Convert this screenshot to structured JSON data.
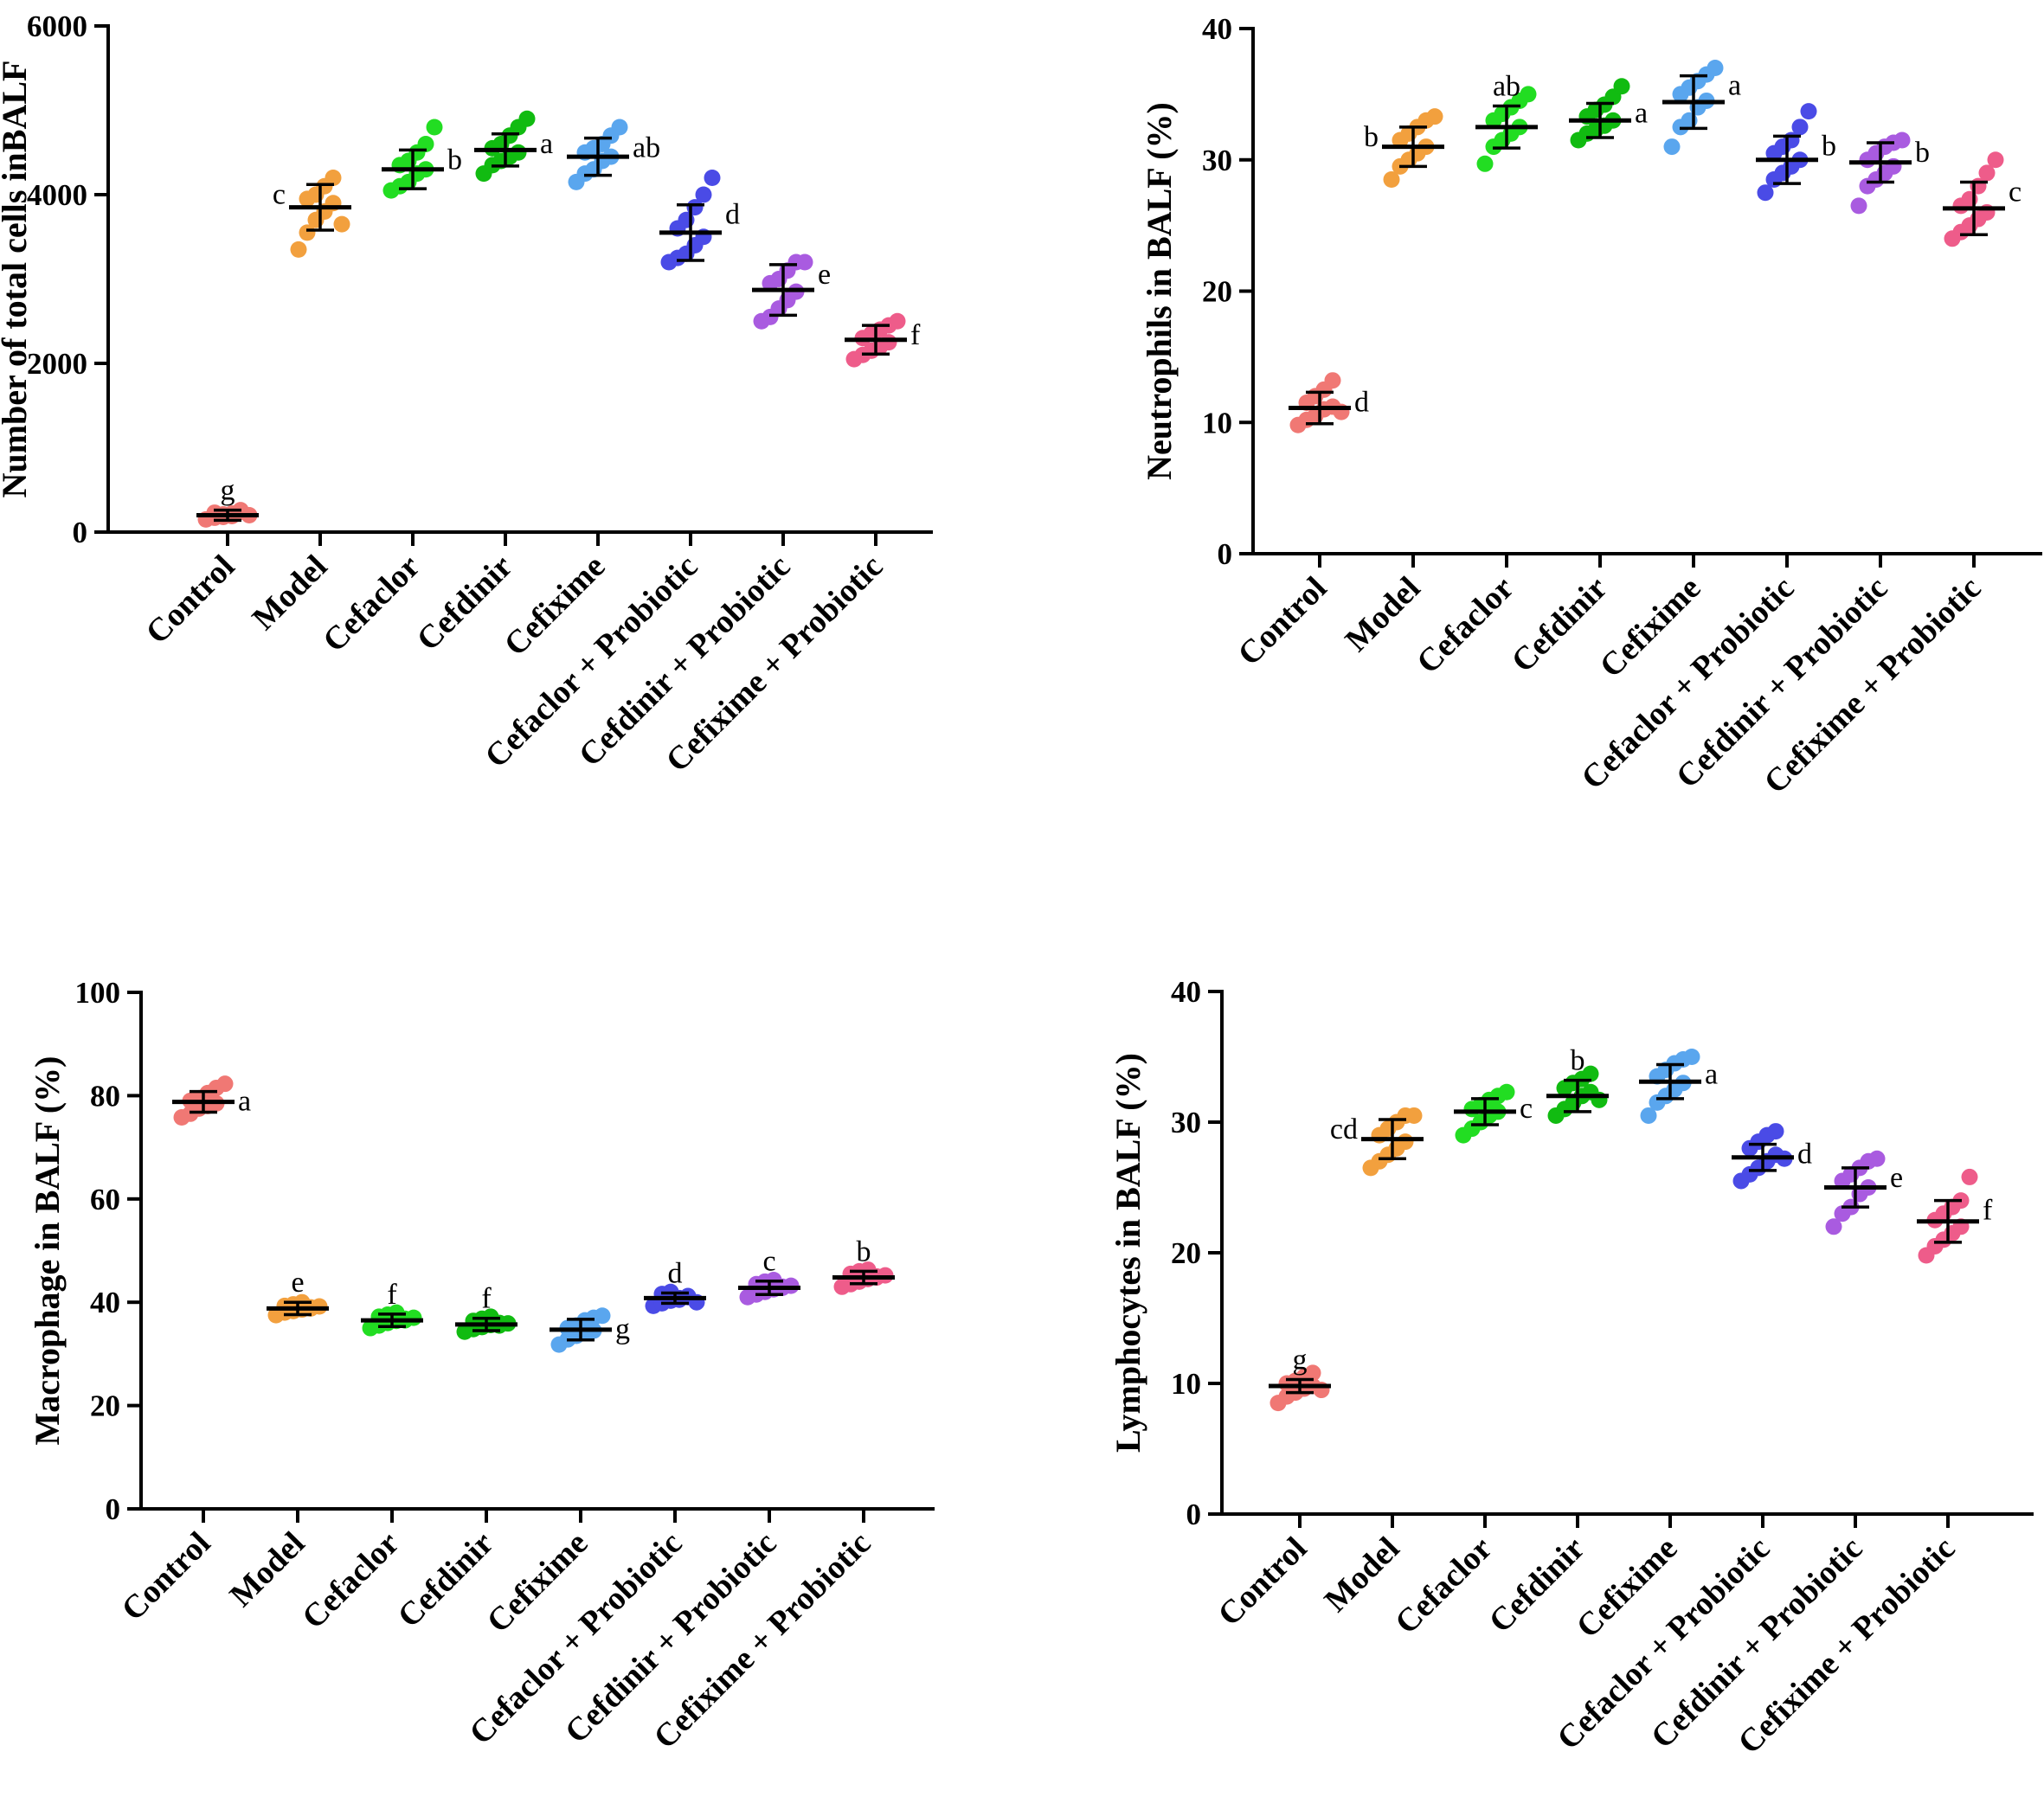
{
  "chart_data": [
    {
      "type": "scatter",
      "ylabel": "Number of total cells inBALF",
      "ylim": [
        0,
        6000
      ],
      "yticks": [
        "0",
        "2000",
        "4000",
        "6000"
      ],
      "categories": [
        "Control",
        "Model",
        "Cefaclor",
        "Cefdinir",
        "Cefixime",
        "Cefaclor + Probiotic",
        "Cefdinir + Probiotic",
        "Cefixime + Probiotic"
      ],
      "means": [
        200,
        3850,
        4300,
        4530,
        4450,
        3550,
        2870,
        2280
      ],
      "errors": [
        60,
        270,
        230,
        190,
        220,
        330,
        300,
        170
      ],
      "letters": [
        "g",
        "c",
        "b",
        "a",
        "ab",
        "d",
        "e",
        "f"
      ],
      "letter_pos": [
        "top",
        "left",
        "right",
        "right",
        "right",
        "right",
        "right",
        "right"
      ],
      "points": [
        [
          150,
          230,
          180,
          220,
          260,
          170,
          210,
          190,
          240,
          200
        ],
        [
          3350,
          3550,
          3700,
          3800,
          3900,
          3950,
          4000,
          4100,
          4200,
          3650
        ],
        [
          4050,
          4100,
          4150,
          4250,
          4300,
          4350,
          4400,
          4500,
          4600,
          4800
        ],
        [
          4250,
          4350,
          4400,
          4450,
          4500,
          4550,
          4600,
          4700,
          4800,
          4900
        ],
        [
          4150,
          4250,
          4300,
          4400,
          4450,
          4500,
          4550,
          4600,
          4700,
          4800
        ],
        [
          3200,
          3250,
          3300,
          3400,
          3500,
          3600,
          3700,
          3850,
          4000,
          4200
        ],
        [
          2500,
          2550,
          2650,
          2750,
          2850,
          2950,
          3000,
          3100,
          3200,
          3200
        ],
        [
          2050,
          2100,
          2150,
          2200,
          2250,
          2300,
          2350,
          2400,
          2450,
          2500
        ]
      ]
    },
    {
      "type": "scatter",
      "ylabel": "Neutrophils in BALF (%)",
      "ylim": [
        0,
        40
      ],
      "yticks": [
        "0",
        "10",
        "20",
        "30",
        "40"
      ],
      "categories": [
        "Control",
        "Model",
        "Cefaclor",
        "Cefdinir",
        "Cefixime",
        "Cefaclor + Probiotic",
        "Cefdinir + Probiotic",
        "Cefixime + Probiotic"
      ],
      "means": [
        11.1,
        31.0,
        32.5,
        33.0,
        34.4,
        30.0,
        29.8,
        26.3
      ],
      "errors": [
        1.2,
        1.5,
        1.6,
        1.3,
        2.0,
        1.8,
        1.5,
        2.0
      ],
      "letters": [
        "d",
        "b",
        "ab",
        "a",
        "a",
        "b",
        "b",
        "c"
      ],
      "letter_pos": [
        "right",
        "left",
        "top",
        "right",
        "right",
        "right",
        "right",
        "right"
      ],
      "points": [
        [
          9.8,
          10.2,
          10.5,
          11.0,
          11.2,
          11.5,
          12.0,
          12.5,
          13.2,
          10.8
        ],
        [
          28.5,
          29.5,
          30.0,
          30.5,
          31.0,
          31.5,
          32.0,
          32.5,
          33.0,
          33.3
        ],
        [
          29.7,
          31.0,
          31.5,
          32.0,
          32.5,
          33.0,
          33.5,
          34.0,
          34.5,
          35.0
        ],
        [
          31.5,
          32.0,
          32.3,
          32.6,
          33.0,
          33.3,
          33.8,
          34.2,
          34.8,
          35.6
        ],
        [
          31.0,
          32.5,
          33.0,
          34.0,
          34.5,
          35.0,
          35.5,
          36.0,
          36.5,
          37.0
        ],
        [
          27.5,
          28.5,
          29.0,
          29.5,
          30.0,
          30.5,
          31.0,
          31.5,
          32.5,
          33.7
        ],
        [
          26.5,
          28.0,
          28.5,
          29.0,
          29.5,
          30.0,
          30.5,
          31.0,
          31.3,
          31.5
        ],
        [
          24.0,
          24.5,
          25.0,
          25.5,
          26.0,
          26.5,
          27.0,
          28.0,
          29.0,
          30.0
        ]
      ]
    },
    {
      "type": "scatter",
      "ylabel": "Macrophage in BALF (%)",
      "ylim": [
        0,
        100
      ],
      "yticks": [
        "0",
        "20",
        "40",
        "60",
        "80",
        "100"
      ],
      "categories": [
        "Control",
        "Model",
        "Cefaclor",
        "Cefdinir",
        "Cefixime",
        "Cefaclor + Probiotic",
        "Cefdinir + Probiotic",
        "Cefixime + Probiotic"
      ],
      "means": [
        78.8,
        38.8,
        36.5,
        35.7,
        34.7,
        40.8,
        42.8,
        44.8
      ],
      "errors": [
        2.0,
        1.2,
        1.2,
        1.2,
        2.0,
        1.0,
        1.3,
        1.2
      ],
      "letters": [
        "a",
        "e",
        "f",
        "f",
        "g",
        "d",
        "c",
        "b"
      ],
      "letter_pos": [
        "right",
        "top",
        "top",
        "top",
        "right",
        "top",
        "top",
        "top"
      ],
      "points": [
        [
          75.8,
          76.5,
          77.5,
          78.0,
          78.5,
          79.0,
          79.5,
          80.5,
          81.5,
          82.3
        ],
        [
          37.5,
          38.0,
          38.3,
          38.6,
          39.0,
          39.3,
          39.6,
          40.0,
          38.8,
          39.2
        ],
        [
          35.0,
          35.5,
          36.0,
          36.4,
          36.8,
          37.2,
          37.6,
          38.0,
          36.5,
          37.0
        ],
        [
          34.3,
          34.8,
          35.2,
          35.6,
          36.0,
          36.4,
          36.8,
          37.2,
          35.5,
          35.9
        ],
        [
          31.8,
          32.8,
          33.5,
          34.0,
          34.5,
          35.0,
          35.5,
          36.5,
          37.0,
          37.4
        ],
        [
          39.3,
          39.8,
          40.3,
          40.8,
          41.2,
          41.6,
          42.0,
          40.5,
          41.0,
          40.0
        ],
        [
          41.0,
          41.5,
          42.0,
          42.5,
          43.0,
          43.5,
          44.0,
          44.3,
          42.8,
          43.2
        ],
        [
          43.0,
          43.5,
          44.0,
          44.5,
          45.0,
          45.5,
          46.0,
          46.3,
          44.8,
          45.2
        ]
      ]
    },
    {
      "type": "scatter",
      "ylabel": "Lymphocytes in BALF (%)",
      "ylim": [
        0,
        40
      ],
      "yticks": [
        "0",
        "10",
        "20",
        "30",
        "40"
      ],
      "categories": [
        "Control",
        "Model",
        "Cefaclor",
        "Cefdinir",
        "Cefixime",
        "Cefaclor + Probiotic",
        "Cefdinir + Probiotic",
        "Cefixime + Probiotic"
      ],
      "means": [
        9.8,
        28.7,
        30.8,
        32.0,
        33.1,
        27.3,
        25.0,
        22.4
      ],
      "errors": [
        0.5,
        1.5,
        1.0,
        1.2,
        1.3,
        1.0,
        1.5,
        1.6
      ],
      "letters": [
        "g",
        "cd",
        "c",
        "b",
        "a",
        "d",
        "e",
        "f"
      ],
      "letter_pos": [
        "top",
        "left",
        "right",
        "top",
        "right",
        "right",
        "right",
        "right"
      ],
      "points": [
        [
          8.5,
          9.0,
          9.3,
          9.6,
          9.8,
          10.0,
          10.2,
          10.5,
          10.8,
          9.5
        ],
        [
          26.5,
          27.0,
          27.5,
          28.0,
          28.5,
          29.0,
          29.5,
          30.0,
          30.5,
          30.5
        ],
        [
          29.0,
          29.5,
          30.0,
          30.5,
          30.8,
          31.0,
          31.3,
          31.7,
          32.0,
          32.3
        ],
        [
          30.5,
          31.0,
          31.5,
          32.0,
          32.3,
          32.6,
          33.0,
          33.3,
          33.7,
          31.7
        ],
        [
          30.5,
          31.5,
          32.0,
          32.5,
          33.0,
          33.5,
          34.0,
          34.5,
          34.8,
          35.0
        ],
        [
          25.5,
          26.0,
          26.5,
          27.0,
          27.5,
          28.0,
          28.5,
          29.0,
          29.3,
          27.2
        ],
        [
          22.0,
          23.0,
          23.5,
          24.5,
          25.0,
          25.5,
          26.0,
          26.5,
          27.0,
          27.2
        ],
        [
          19.8,
          20.5,
          21.0,
          21.5,
          22.0,
          22.5,
          23.0,
          23.5,
          24.0,
          25.8
        ]
      ]
    }
  ]
}
